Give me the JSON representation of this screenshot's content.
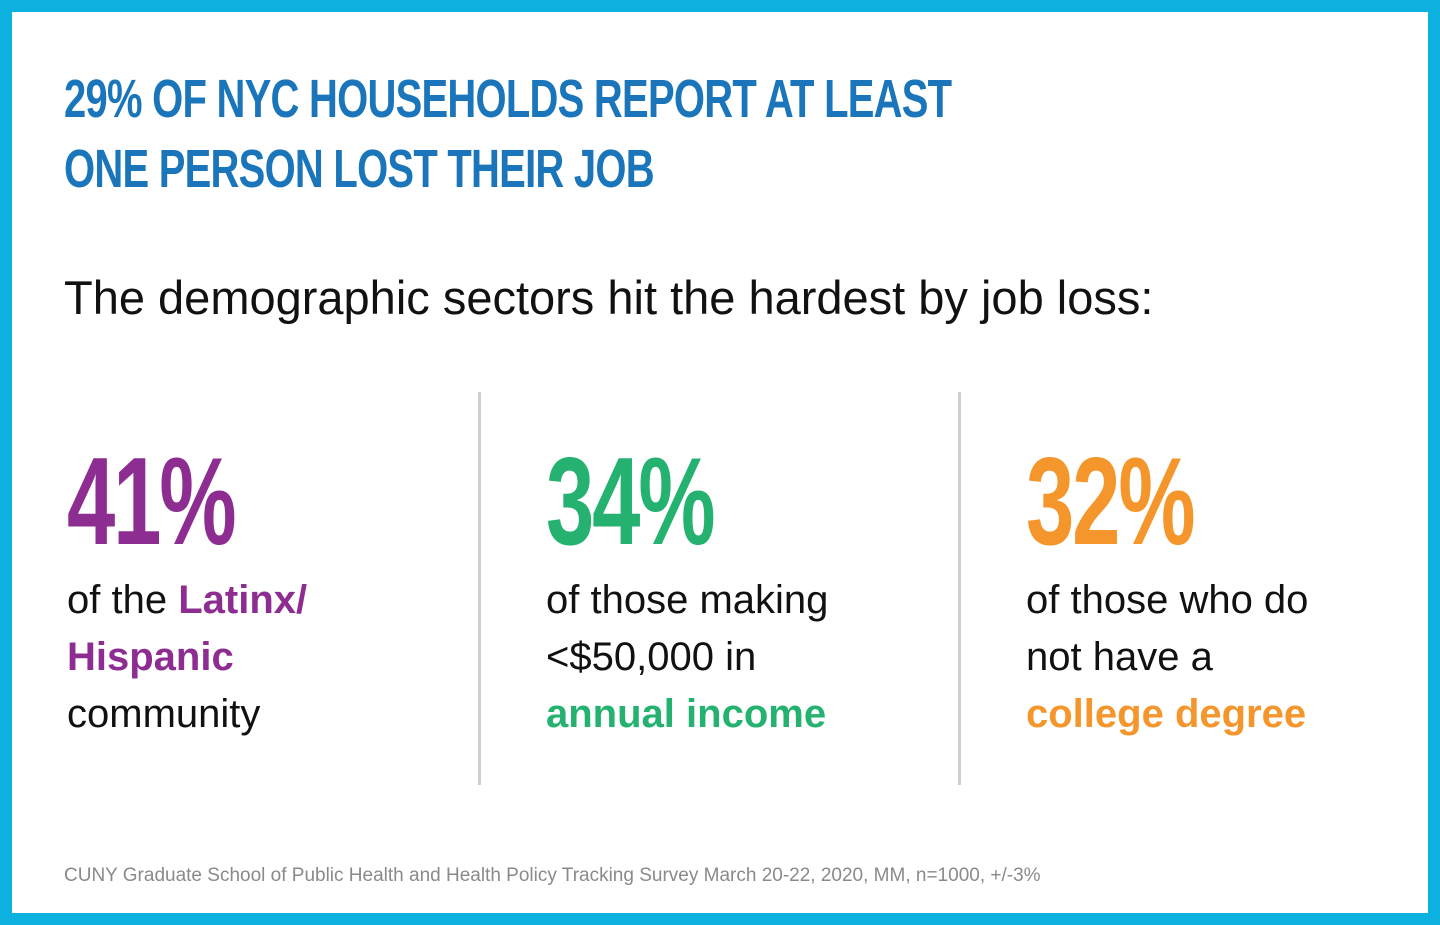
{
  "headline": {
    "line1": "29% OF NYC HOUSEHOLDS REPORT AT LEAST",
    "line2": "ONE PERSON LOST THEIR JOB"
  },
  "subhead": "The demographic sectors hit the hardest by job loss:",
  "stats": [
    {
      "value": "41%",
      "line1_plain": "of the ",
      "line1_em": "Latinx/",
      "line2_em": "Hispanic",
      "line3": "community"
    },
    {
      "value": "34%",
      "line1": "of those making",
      "line2": "<$50,000 in",
      "line3_em": "annual income"
    },
    {
      "value": "32%",
      "line1": "of those who do",
      "line2": "not have a",
      "line3_em": "college degree"
    }
  ],
  "source": "CUNY Graduate School of Public Health and Health Policy Tracking Survey March 20-22, 2020, MM, n=1000, +/-3%",
  "colors": {
    "border": "#0db1e0",
    "headline": "#1a75bb",
    "purple": "#8e2d91",
    "green": "#25b270",
    "orange": "#f4962c"
  }
}
